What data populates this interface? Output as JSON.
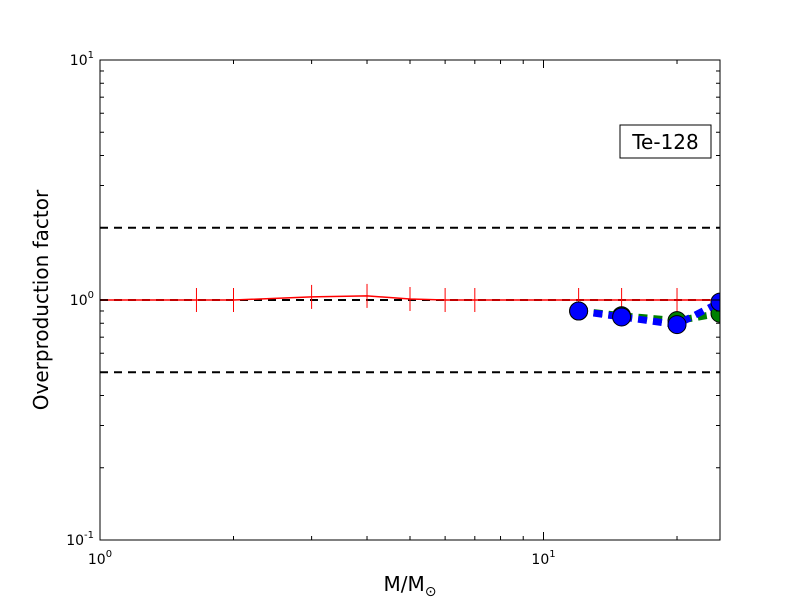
{
  "chart_data": {
    "type": "line",
    "x_scale": "log",
    "y_scale": "log",
    "xlim": [
      1,
      25
    ],
    "ylim": [
      0.1,
      10
    ],
    "xlabel": "M/M",
    "xlabel_symbol": "⊙",
    "ylabel": "Overproduction factor",
    "grid": false,
    "annotation": "Te-128",
    "x_ticks": [
      {
        "value": 1,
        "base": "10",
        "exp": "0"
      },
      {
        "value": 10,
        "base": "10",
        "exp": "1"
      }
    ],
    "y_ticks": [
      {
        "value": 0.1,
        "base": "10",
        "exp": "-1"
      },
      {
        "value": 1,
        "base": "10",
        "exp": "0"
      },
      {
        "value": 10,
        "base": "10",
        "exp": "1"
      }
    ],
    "reference_lines": [
      {
        "y": 2,
        "color": "#000000",
        "style": "dashed"
      },
      {
        "y": 1,
        "color": "#000000",
        "style": "dashed"
      },
      {
        "y": 0.5,
        "color": "#000000",
        "style": "dashed"
      }
    ],
    "series": [
      {
        "style": "solid-line-vertical-ticks",
        "color": "#ff0000",
        "x": [
          1.0,
          1.65,
          2.0,
          3.0,
          4.0,
          5.0,
          6.0,
          7.0,
          12.0,
          15.0,
          20.0,
          25.0
        ],
        "y": [
          1.0,
          1.0,
          1.0,
          1.03,
          1.04,
          1.01,
          1.0,
          1.0,
          1.0,
          1.0,
          1.0,
          1.0
        ]
      },
      {
        "style": "dashed-markers",
        "color": "#008000",
        "x": [
          12.0,
          15.0,
          20.0,
          25.0
        ],
        "y": [
          0.9,
          0.86,
          0.82,
          0.88
        ]
      },
      {
        "style": "dashed-markers",
        "color": "#0000ff",
        "x": [
          12.0,
          15.0,
          20.0,
          25.0
        ],
        "y": [
          0.9,
          0.85,
          0.79,
          0.98
        ]
      }
    ]
  }
}
